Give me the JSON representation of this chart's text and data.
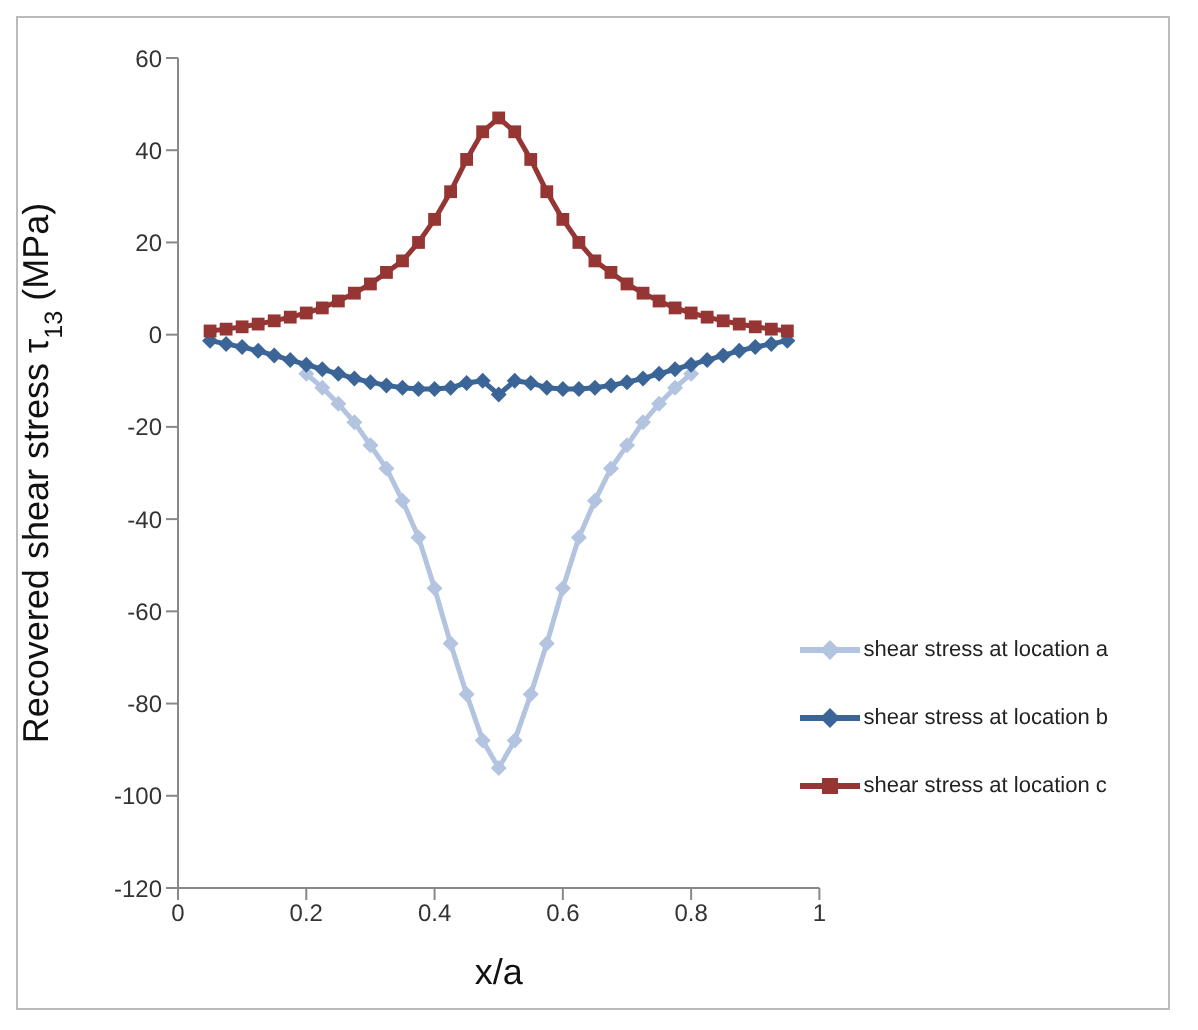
{
  "chart_data": {
    "type": "line",
    "xlabel": "x/a",
    "ylabel": "Recovered  shear stress τ$_{13}$  (MPa)",
    "x": [
      0.05,
      0.075,
      0.1,
      0.125,
      0.15,
      0.175,
      0.2,
      0.225,
      0.25,
      0.275,
      0.3,
      0.325,
      0.35,
      0.375,
      0.4,
      0.425,
      0.45,
      0.475,
      0.5,
      0.525,
      0.55,
      0.575,
      0.6,
      0.625,
      0.65,
      0.675,
      0.7,
      0.725,
      0.75,
      0.775,
      0.8,
      0.825,
      0.85,
      0.875,
      0.9,
      0.925,
      0.95
    ],
    "series": [
      {
        "name": "shear stress at location a",
        "color": "#b3c4e0",
        "marker": "diamond",
        "values": [
          null,
          null,
          null,
          null,
          null,
          null,
          -8.5,
          -11.5,
          -15,
          -19,
          -24,
          -29,
          -36,
          -44,
          -55,
          -67,
          -78,
          -88,
          -94,
          -88,
          -78,
          -67,
          -55,
          -44,
          -36,
          -29,
          -24,
          -19,
          -15,
          -11.5,
          -8.5,
          null,
          null,
          null,
          null,
          null,
          null
        ]
      },
      {
        "name": "shear stress at location b",
        "color": "#3b6597",
        "marker": "diamond",
        "values": [
          -1.3,
          -2,
          -2.7,
          -3.5,
          -4.5,
          -5.5,
          -6.5,
          -7.5,
          -8.5,
          -9.5,
          -10.3,
          -11,
          -11.5,
          -11.8,
          -11.8,
          -11.5,
          -10.5,
          -10,
          -13,
          -10,
          -10.5,
          -11.5,
          -11.8,
          -11.8,
          -11.5,
          -11,
          -10.3,
          -9.5,
          -8.5,
          -7.5,
          -6.5,
          -5.5,
          -4.5,
          -3.5,
          -2.7,
          -2,
          -1.3
        ]
      },
      {
        "name": "shear stress at location c",
        "color": "#963634",
        "marker": "square",
        "values": [
          0.8,
          1.2,
          1.7,
          2.3,
          3,
          3.8,
          4.7,
          5.8,
          7.3,
          9,
          11,
          13.5,
          16,
          20,
          25,
          31,
          38,
          44,
          47,
          44,
          38,
          31,
          25,
          20,
          16,
          13.5,
          11,
          9,
          7.3,
          5.8,
          4.7,
          3.8,
          3,
          2.3,
          1.7,
          1.2,
          0.8
        ]
      }
    ],
    "xlim": [
      0,
      1
    ],
    "xticks": [
      0,
      0.2,
      0.4,
      0.6,
      0.8,
      1
    ],
    "ylim": [
      -120,
      60
    ],
    "yticks": [
      -120,
      -100,
      -80,
      -60,
      -40,
      -20,
      0,
      20,
      40,
      60
    ],
    "grid": false,
    "legend": "right",
    "line_style": "solid"
  }
}
